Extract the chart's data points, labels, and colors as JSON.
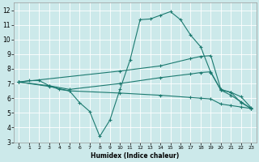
{
  "background_color": "#cce9ea",
  "grid_color": "#ffffff",
  "line_color": "#1c7a70",
  "xlabel": "Humidex (Indice chaleur)",
  "xlim": [
    -0.5,
    23.5
  ],
  "ylim": [
    3,
    12.5
  ],
  "xticks": [
    0,
    1,
    2,
    3,
    4,
    5,
    6,
    7,
    8,
    9,
    10,
    11,
    12,
    13,
    14,
    15,
    16,
    17,
    18,
    19,
    20,
    21,
    22,
    23
  ],
  "yticks": [
    3,
    4,
    5,
    6,
    7,
    8,
    9,
    10,
    11,
    12
  ],
  "series1": [
    [
      0,
      7.1
    ],
    [
      1,
      7.2
    ],
    [
      2,
      7.2
    ],
    [
      3,
      6.85
    ],
    [
      4,
      6.6
    ],
    [
      5,
      6.5
    ],
    [
      6,
      5.7
    ],
    [
      7,
      5.1
    ],
    [
      8,
      3.4
    ],
    [
      9,
      4.5
    ],
    [
      10,
      6.6
    ],
    [
      11,
      8.6
    ],
    [
      12,
      11.35
    ],
    [
      13,
      11.4
    ],
    [
      14,
      11.65
    ],
    [
      15,
      11.9
    ],
    [
      16,
      11.35
    ],
    [
      17,
      10.3
    ],
    [
      18,
      9.5
    ],
    [
      19,
      7.75
    ],
    [
      20,
      6.55
    ],
    [
      21,
      6.4
    ],
    [
      22,
      5.7
    ],
    [
      23,
      5.3
    ]
  ],
  "series2": [
    [
      0,
      7.1
    ],
    [
      10,
      7.85
    ],
    [
      14,
      8.2
    ],
    [
      17,
      8.7
    ],
    [
      18,
      8.85
    ],
    [
      19,
      8.9
    ],
    [
      20,
      6.6
    ],
    [
      21,
      6.4
    ],
    [
      22,
      6.1
    ],
    [
      23,
      5.35
    ]
  ],
  "series3": [
    [
      0,
      7.1
    ],
    [
      3,
      6.85
    ],
    [
      5,
      6.6
    ],
    [
      10,
      7.0
    ],
    [
      14,
      7.4
    ],
    [
      17,
      7.65
    ],
    [
      18,
      7.75
    ],
    [
      19,
      7.8
    ],
    [
      20,
      6.55
    ],
    [
      21,
      6.2
    ],
    [
      22,
      5.75
    ],
    [
      23,
      5.3
    ]
  ],
  "series4": [
    [
      0,
      7.1
    ],
    [
      3,
      6.8
    ],
    [
      5,
      6.5
    ],
    [
      10,
      6.35
    ],
    [
      14,
      6.2
    ],
    [
      17,
      6.05
    ],
    [
      18,
      6.0
    ],
    [
      19,
      5.95
    ],
    [
      20,
      5.6
    ],
    [
      21,
      5.5
    ],
    [
      22,
      5.4
    ],
    [
      23,
      5.3
    ]
  ]
}
